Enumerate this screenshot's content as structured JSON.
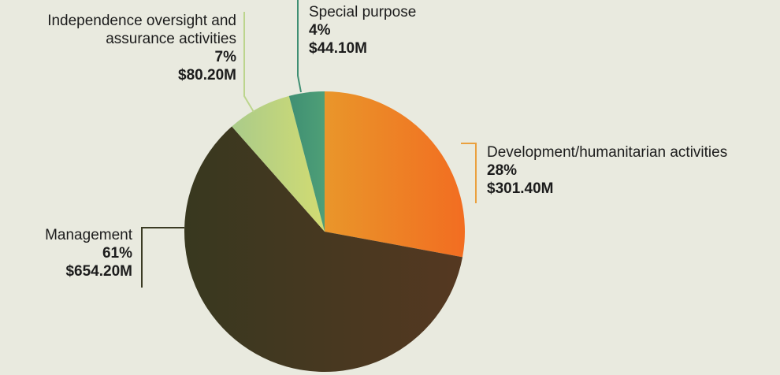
{
  "chart_data": {
    "type": "pie",
    "title": "",
    "slices": [
      {
        "name": "Development/humanitarian activities",
        "percent_label": "28%",
        "amount_label": "$301.40M",
        "value": 301.4,
        "color_start": "#e9962a",
        "color_end": "#f26d21",
        "line_color": "#eaa03e"
      },
      {
        "name": "Management",
        "percent_label": "61%",
        "amount_label": "$654.20M",
        "value": 654.2,
        "color_start": "#38381f",
        "color_end": "#553821",
        "line_color": "#3b3b24"
      },
      {
        "name": "Independence oversight and assurance activities",
        "name_lines": [
          "Independence oversight and",
          "assurance activities"
        ],
        "percent_label": "7%",
        "amount_label": "$80.20M",
        "value": 80.2,
        "color_start": "#aacb8a",
        "color_end": "#d2dc72",
        "line_color": "#bcd58d"
      },
      {
        "name": "Special purpose",
        "percent_label": "4%",
        "amount_label": "$44.10M",
        "value": 44.1,
        "color_start": "#3f8f73",
        "color_end": "#4e9f77",
        "line_color": "#3f8f73"
      }
    ]
  }
}
